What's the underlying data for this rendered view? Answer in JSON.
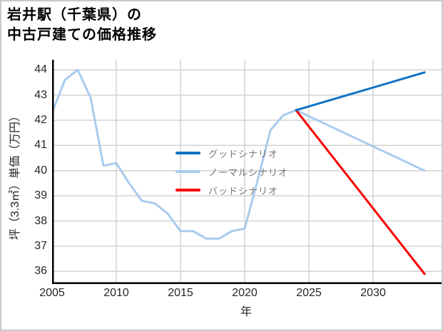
{
  "title": {
    "line1": "岩井駅（千葉県）の",
    "line2": "中古戸建ての価格推移"
  },
  "chart_data": {
    "type": "line",
    "title": "岩井駅（千葉県）の中古戸建ての価格推移",
    "xlabel": "年",
    "ylabel": "坪（3.3㎡）単価（万円）",
    "xlim": [
      2005,
      2035.33
    ],
    "ylim": [
      35.5,
      44.4
    ],
    "xticks": [
      2005,
      2010,
      2015,
      2020,
      2025,
      2030
    ],
    "xtick_labels": [
      "2005",
      "2010",
      "2015",
      "2020",
      "2025",
      "2030"
    ],
    "xgrid_years": [
      2005,
      2010,
      2015,
      2020,
      2025,
      2030
    ],
    "yticks": [
      36,
      37,
      38,
      39,
      40,
      41,
      42,
      43,
      44
    ],
    "ytick_labels": [
      "36",
      "37",
      "38",
      "39",
      "40",
      "41",
      "42",
      "43",
      "44"
    ],
    "grid": true,
    "grid_color": "#d2d2d2",
    "axis_color": "#000000",
    "line_width": 3,
    "legend_position": "inside-center-left",
    "series": [
      {
        "name": "グッドシナリオ",
        "color": "#1172c4",
        "z": 3,
        "x": [
          2024,
          2034
        ],
        "y": [
          42.4,
          43.9
        ]
      },
      {
        "name": "ノーマルシナリオ",
        "color": "#a9cbee",
        "z": 1,
        "x": [
          2005,
          2006,
          2007,
          2008,
          2009,
          2010,
          2011,
          2012,
          2013,
          2014,
          2015,
          2016,
          2017,
          2018,
          2019,
          2020,
          2021,
          2022,
          2023,
          2024,
          2034
        ],
        "y": [
          42.3,
          43.6,
          44.0,
          42.9,
          40.2,
          40.3,
          39.5,
          38.8,
          38.7,
          38.3,
          37.6,
          37.6,
          37.3,
          37.3,
          37.6,
          37.7,
          39.6,
          41.6,
          42.2,
          42.4,
          40.0
        ]
      },
      {
        "name": "バッドシナリオ",
        "color": "#fa0000",
        "z": 2,
        "x": [
          2024,
          2034
        ],
        "y": [
          42.4,
          35.9
        ]
      }
    ]
  }
}
